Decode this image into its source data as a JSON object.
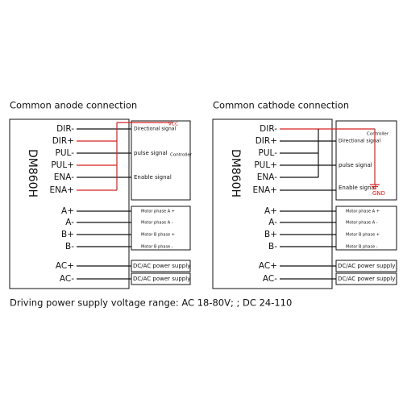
{
  "panels": [
    {
      "title": "Common anode connection",
      "driver": "DM860H",
      "pins": [
        "DIR-",
        "DIR+",
        "PUL-",
        "PUL+",
        "ENA-",
        "ENA+",
        "A+",
        "A-",
        "B+",
        "B-",
        "AC+",
        "AC-"
      ],
      "controller": {
        "label": "Controller",
        "supply": "VCC",
        "signals": [
          "Directional signal",
          "pulse signal",
          "Enable signal"
        ]
      },
      "motor": [
        "Motor phase A +",
        "Motor phase A -",
        "Motor B phase +",
        "Motor B phase -"
      ],
      "power": [
        "DC/AC power supply",
        "DC/AC power supply"
      ]
    },
    {
      "title": "Common cathode connection",
      "driver": "DM860H",
      "pins": [
        "DIR-",
        "DIR+",
        "PUL-",
        "PUL+",
        "ENA-",
        "ENA+",
        "A+",
        "A-",
        "B+",
        "B-",
        "AC+",
        "AC-"
      ],
      "controller": {
        "label": "Controller",
        "supply": "GND",
        "signals": [
          "Directional signal",
          "pulse signal",
          "Enable signal"
        ]
      },
      "motor": [
        "Motor phase A +",
        "Motor phase A -",
        "Motor B phase +",
        "Motor B phase -"
      ],
      "power": [
        "DC/AC power supply",
        "DC/AC power supply"
      ]
    }
  ],
  "footer": "Driving power supply voltage range: AC 18-80V;  ; DC 24-110"
}
